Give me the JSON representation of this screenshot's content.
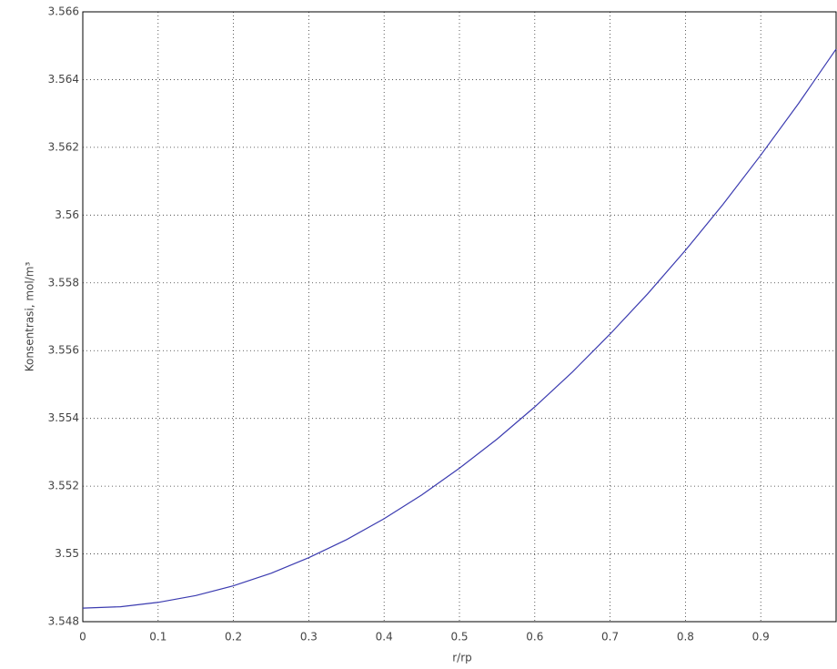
{
  "chart_data": {
    "type": "line",
    "xlabel": "r/rp",
    "ylabel": "Konsentrasi, mol/m³",
    "x": [
      0,
      0.05,
      0.1,
      0.15,
      0.2,
      0.25,
      0.3,
      0.35,
      0.4,
      0.45,
      0.5,
      0.55,
      0.6,
      0.65,
      0.7,
      0.75,
      0.8,
      0.85,
      0.9,
      0.95,
      1
    ],
    "series": [
      {
        "color": "#3b3bb0",
        "values": [
          3.5484,
          3.54844,
          3.54857,
          3.54877,
          3.54906,
          3.54943,
          3.54989,
          3.55042,
          3.55104,
          3.55174,
          3.55253,
          3.55339,
          3.55434,
          3.55537,
          3.55649,
          3.55768,
          3.55896,
          3.56032,
          3.56177,
          3.56329,
          3.5649
        ]
      }
    ],
    "xlim": [
      0,
      1
    ],
    "ylim": [
      3.548,
      3.566
    ],
    "xticks": [
      0,
      0.1,
      0.2,
      0.3,
      0.4,
      0.5,
      0.6,
      0.7,
      0.8,
      0.9
    ],
    "yticks": [
      3.548,
      3.55,
      3.552,
      3.554,
      3.556,
      3.558,
      3.56,
      3.562,
      3.564,
      3.566
    ],
    "grid": true
  }
}
